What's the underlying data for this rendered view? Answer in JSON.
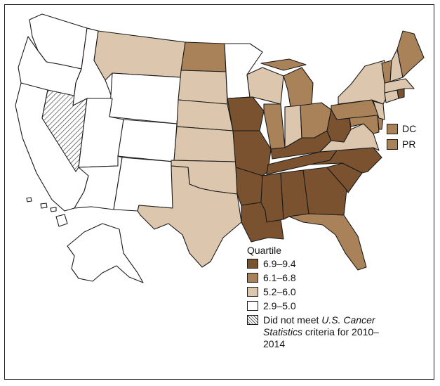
{
  "legend": {
    "title": "Quartile",
    "items": [
      {
        "label": "6.9–9.4",
        "color": "#7a5230"
      },
      {
        "label": "6.1–6.8",
        "color": "#a98259"
      },
      {
        "label": "5.2–6.0",
        "color": "#dcc6ad"
      },
      {
        "label": "2.9–5.0",
        "color": "#ffffff"
      }
    ],
    "not_met": {
      "pre": "Did not meet ",
      "italic": "U.S. Cancer Statistics",
      "post": " criteria for 2010–2014"
    }
  },
  "insets": [
    {
      "label": "DC",
      "quartile": "6.1–6.8",
      "color": "#a98259"
    },
    {
      "label": "PR",
      "quartile": "6.1–6.8",
      "color": "#a98259"
    }
  ],
  "state_quartiles": {
    "WA": "2.9–5.0",
    "OR": "2.9–5.0",
    "CA": "2.9–5.0",
    "NV": "not met",
    "ID": "2.9–5.0",
    "MT": "5.2–6.0",
    "WY": "2.9–5.0",
    "UT": "2.9–5.0",
    "CO": "2.9–5.0",
    "AZ": "2.9–5.0",
    "NM": "2.9–5.0",
    "ND": "6.1–6.8",
    "SD": "5.2–6.0",
    "NE": "5.2–6.0",
    "KS": "5.2–6.0",
    "OK": "5.2–6.0",
    "TX": "5.2–6.0",
    "MN": "2.9–5.0",
    "IA": "6.9–9.4",
    "MO": "6.9–9.4",
    "AR": "6.9–9.4",
    "LA": "6.9–9.4",
    "WI": "5.2–6.0",
    "IL": "6.1–6.8",
    "MI": "6.1–6.8",
    "IN": "5.2–6.0",
    "OH": "6.1–6.8",
    "KY": "6.9–9.4",
    "TN": "6.9–9.4",
    "MS": "6.9–9.4",
    "AL": "6.9–9.4",
    "GA": "6.9–9.4",
    "FL": "6.1–6.8",
    "SC": "6.9–9.4",
    "NC": "6.9–9.4",
    "VA": "5.2–6.0",
    "WV": "6.9–9.4",
    "PA": "6.1–6.8",
    "NY": "5.2–6.0",
    "MD": "6.1–6.8",
    "DE": "6.1–6.8",
    "NJ": "5.2–6.0",
    "CT": "5.2–6.0",
    "RI": "6.9–9.4",
    "MA": "5.2–6.0",
    "VT": "6.1–6.8",
    "NH": "5.2–6.0",
    "ME": "6.1–6.8",
    "AK": "2.9–5.0",
    "HI": "2.9–5.0"
  }
}
